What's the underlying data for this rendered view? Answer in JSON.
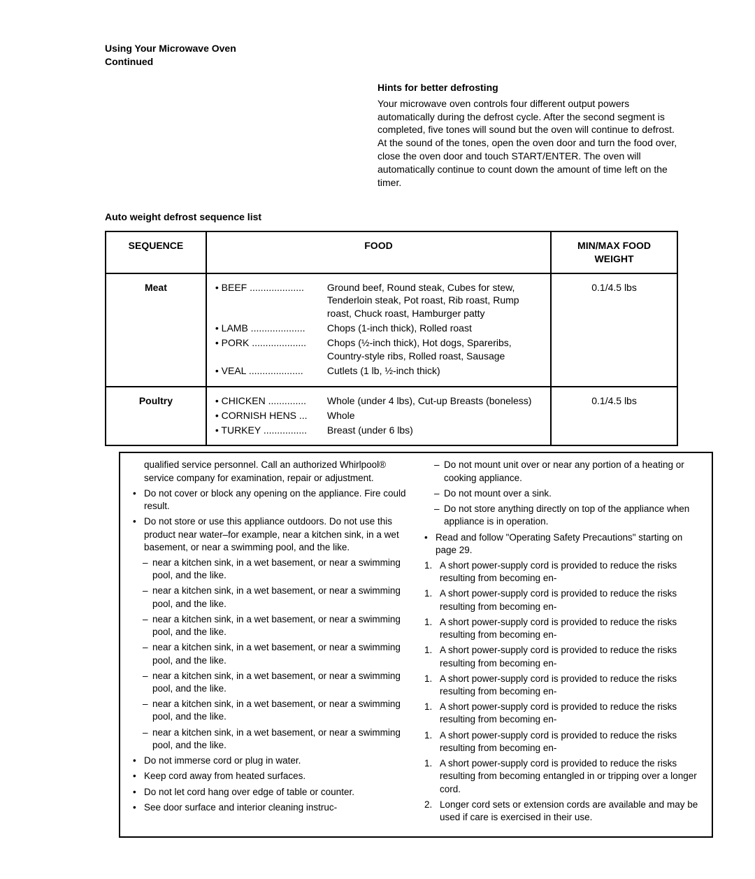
{
  "heading": {
    "line1": "Using Your Microwave Oven",
    "line2": "Continued"
  },
  "hints": {
    "title": "Hints for better defrosting",
    "body": "Your microwave oven controls four different output powers automatically during the defrost cycle. After the second segment is completed, five tones will sound but the oven will continue to defrost. At the sound of the tones, open the oven door and turn the food over, close the oven door and touch START/ENTER. The oven will automatically continue to count down the amount of time left on the timer."
  },
  "tableTitle": "Auto weight defrost sequence list",
  "table": {
    "headers": {
      "seq": "SEQUENCE",
      "food": "FOOD",
      "weight": "MIN/MAX FOOD WEIGHT"
    },
    "rows": [
      {
        "sequence": "Meat",
        "weight": "0.1/4.5 lbs",
        "foods": [
          {
            "cat": "• BEEF ....................",
            "desc": "Ground beef, Round steak, Cubes for stew, Tenderloin steak, Pot roast, Rib roast, Rump roast, Chuck roast, Hamburger patty"
          },
          {
            "cat": "• LAMB ....................",
            "desc": "Chops (1-inch thick), Rolled roast"
          },
          {
            "cat": "• PORK ....................",
            "desc": "Chops (½-inch thick), Hot dogs, Spareribs, Country-style ribs, Rolled roast, Sausage"
          },
          {
            "cat": "• VEAL ....................",
            "desc": "Cutlets (1 lb, ½-inch thick)"
          }
        ]
      },
      {
        "sequence": "Poultry",
        "weight": "0.1/4.5 lbs",
        "foods": [
          {
            "cat": "• CHICKEN ..............",
            "desc": "Whole (under 4 lbs), Cut-up Breasts (boneless)"
          },
          {
            "cat": "• CORNISH HENS ...",
            "desc": "Whole"
          },
          {
            "cat": "• TURKEY ................",
            "desc": "Breast (under 6 lbs)"
          }
        ]
      }
    ]
  },
  "bottom": {
    "left": [
      {
        "type": "plain",
        "text": "qualified service personnel. Call an authorized Whirlpool® service company for examination, repair or adjustment."
      },
      {
        "type": "bullet",
        "text": "Do not cover or block any opening on the appliance. Fire could result."
      },
      {
        "type": "bullet",
        "text": "Do not store or use this appliance outdoors. Do not use this product near water–for example, near a kitchen sink, in a wet basement, or near a swimming pool, and the like."
      },
      {
        "type": "dash",
        "text": "near a kitchen sink, in a wet basement, or near a swimming pool, and the like."
      },
      {
        "type": "dash",
        "text": "near a kitchen sink, in a wet basement, or near a swimming pool, and the like."
      },
      {
        "type": "dash",
        "text": "near a kitchen sink, in a wet basement, or near a swimming pool, and the like."
      },
      {
        "type": "dash",
        "text": "near a kitchen sink, in a wet basement, or near a swimming pool, and the like."
      },
      {
        "type": "dash",
        "text": "near a kitchen sink, in a wet basement, or near a swimming pool, and the like."
      },
      {
        "type": "dash",
        "text": "near a kitchen sink, in a wet basement, or near a swimming pool, and the like."
      },
      {
        "type": "dash",
        "text": "near a kitchen sink, in a wet basement, or near a swimming pool, and the like."
      },
      {
        "type": "bullet",
        "text": "Do not immerse cord or plug in water."
      },
      {
        "type": "bullet",
        "text": "Keep cord away from heated surfaces."
      },
      {
        "type": "bullet",
        "text": "Do not let cord hang over edge of table or counter."
      },
      {
        "type": "bullet",
        "text": "See door surface and interior cleaning instruc-"
      }
    ],
    "right": [
      {
        "type": "dash",
        "text": "Do not mount unit over or near any portion of a heating or cooking appliance."
      },
      {
        "type": "dash",
        "text": "Do not mount over a sink."
      },
      {
        "type": "dash",
        "text": "Do not store anything directly on top of the appliance when appliance is in operation."
      },
      {
        "type": "bullet",
        "text": "Read and follow \"Operating Safety Precautions\" starting on page 29."
      },
      {
        "type": "num",
        "num": "1.",
        "text": "A short power-supply cord is provided to reduce the risks resulting from becoming en-"
      },
      {
        "type": "num",
        "num": "1.",
        "text": "A short power-supply cord is provided to reduce the risks resulting from becoming en-"
      },
      {
        "type": "num",
        "num": "1.",
        "text": "A short power-supply cord is provided to reduce the risks resulting from becoming en-"
      },
      {
        "type": "num",
        "num": "1.",
        "text": "A short power-supply cord is provided to reduce the risks resulting from becoming en-"
      },
      {
        "type": "num",
        "num": "1.",
        "text": "A short power-supply cord is provided to reduce the risks resulting from becoming en-"
      },
      {
        "type": "num",
        "num": "1.",
        "text": "A short power-supply cord is provided to reduce the risks resulting from becoming en-"
      },
      {
        "type": "num",
        "num": "1.",
        "text": "A short power-supply cord is provided to reduce the risks resulting from becoming en-"
      },
      {
        "type": "num",
        "num": "1.",
        "text": "A short power-supply cord is provided to reduce the risks resulting from becoming entangled in or tripping over a longer cord."
      },
      {
        "type": "num",
        "num": "2.",
        "text": "Longer cord sets or extension cords are available and may be used if care is exercised in their use."
      }
    ]
  }
}
